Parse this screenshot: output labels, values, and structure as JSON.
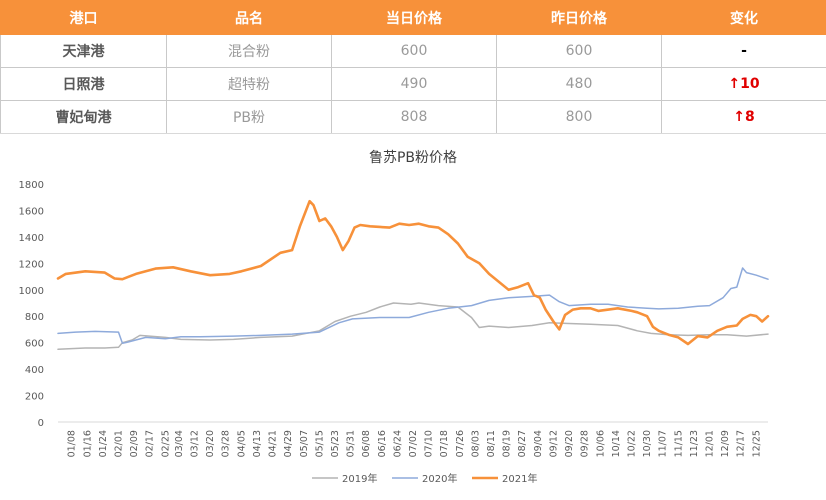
{
  "table": {
    "headers": [
      "港口",
      "品名",
      "当日价格",
      "昨日价格",
      "变化"
    ],
    "rows": [
      {
        "port": "天津港",
        "product": "混合粉",
        "today": "600",
        "yesterday": "600",
        "change": "-",
        "arrow": ""
      },
      {
        "port": "日照港",
        "product": "超特粉",
        "today": "490",
        "yesterday": "480",
        "change": "10",
        "arrow": "↑"
      },
      {
        "port": "曹妃甸港",
        "product": "PB粉",
        "today": "808",
        "yesterday": "800",
        "change": "8",
        "arrow": "↑"
      }
    ],
    "header_color": "#f7913a",
    "up_color": "#e00000"
  },
  "chart_data": {
    "type": "line",
    "title": "鲁苏PB粉价格",
    "xlabel": "",
    "ylabel": "",
    "ylim": [
      0,
      1800
    ],
    "yticks": [
      0,
      200,
      400,
      600,
      800,
      1000,
      1200,
      1400,
      1600,
      1800
    ],
    "grid": false,
    "legend": "bottom",
    "x_tick_labels": [
      "01/08",
      "01/16",
      "01/24",
      "02/01",
      "02/09",
      "02/17",
      "02/25",
      "03/04",
      "03/12",
      "03/20",
      "03/28",
      "04/05",
      "04/13",
      "04/21",
      "04/29",
      "05/07",
      "05/15",
      "05/23",
      "05/31",
      "06/08",
      "06/16",
      "06/24",
      "07/02",
      "07/10",
      "07/18",
      "07/26",
      "08/03",
      "08/11",
      "08/19",
      "08/27",
      "09/04",
      "09/12",
      "09/20",
      "09/28",
      "10/06",
      "10/14",
      "10/22",
      "10/30",
      "11/07",
      "11/15",
      "11/23",
      "12/01",
      "12/09",
      "12/17",
      "12/25"
    ],
    "x_range": [
      "01/01",
      "12/31"
    ],
    "series": [
      {
        "name": "2019年",
        "color": "#b4b4b4",
        "width": 1.5,
        "x": [
          "01/01",
          "01/15",
          "01/25",
          "02/01",
          "02/03",
          "02/08",
          "02/12",
          "02/25",
          "03/05",
          "03/20",
          "04/01",
          "04/15",
          "05/01",
          "05/15",
          "05/23",
          "05/31",
          "06/08",
          "06/15",
          "06/22",
          "07/01",
          "07/05",
          "07/15",
          "07/25",
          "08/01",
          "08/05",
          "08/10",
          "08/20",
          "09/01",
          "09/10",
          "09/20",
          "10/01",
          "10/15",
          "10/25",
          "11/01",
          "11/10",
          "11/20",
          "12/01",
          "12/10",
          "12/20",
          "12/31"
        ],
        "y": [
          550,
          560,
          560,
          565,
          600,
          620,
          655,
          640,
          625,
          620,
          625,
          640,
          650,
          690,
          760,
          800,
          830,
          870,
          900,
          890,
          900,
          880,
          870,
          790,
          715,
          725,
          715,
          730,
          750,
          745,
          740,
          730,
          690,
          670,
          660,
          655,
          660,
          660,
          650,
          665
        ]
      },
      {
        "name": "2020年",
        "color": "#8eaadb",
        "width": 1.5,
        "x": [
          "01/01",
          "01/10",
          "01/20",
          "02/01",
          "02/03",
          "02/06",
          "02/15",
          "02/25",
          "03/05",
          "03/15",
          "04/01",
          "04/15",
          "05/01",
          "05/15",
          "05/25",
          "06/01",
          "06/15",
          "06/30",
          "07/10",
          "07/20",
          "08/01",
          "08/10",
          "08/20",
          "09/01",
          "09/10",
          "09/15",
          "09/20",
          "10/01",
          "10/10",
          "10/20",
          "10/30",
          "11/05",
          "11/15",
          "11/25",
          "12/01",
          "12/08",
          "12/12",
          "12/15",
          "12/18",
          "12/20",
          "12/25",
          "12/31"
        ],
        "y": [
          670,
          680,
          685,
          680,
          595,
          605,
          640,
          630,
          645,
          645,
          650,
          655,
          665,
          680,
          750,
          780,
          790,
          790,
          830,
          860,
          880,
          920,
          940,
          950,
          960,
          910,
          880,
          890,
          890,
          870,
          860,
          855,
          860,
          875,
          880,
          940,
          1010,
          1020,
          1165,
          1130,
          1110,
          1080
        ]
      },
      {
        "name": "2021年",
        "color": "#f7913a",
        "width": 2.6,
        "x": [
          "01/01",
          "01/05",
          "01/15",
          "01/25",
          "01/30",
          "02/03",
          "02/10",
          "02/20",
          "03/01",
          "03/10",
          "03/20",
          "03/30",
          "04/05",
          "04/15",
          "04/25",
          "05/01",
          "05/05",
          "05/10",
          "05/12",
          "05/15",
          "05/18",
          "05/21",
          "05/24",
          "05/27",
          "05/30",
          "06/02",
          "06/05",
          "06/10",
          "06/20",
          "06/25",
          "06/30",
          "07/05",
          "07/10",
          "07/15",
          "07/20",
          "07/25",
          "07/30",
          "08/05",
          "08/10",
          "08/20",
          "08/25",
          "08/30",
          "09/02",
          "09/05",
          "09/08",
          "09/12",
          "09/15",
          "09/18",
          "09/22",
          "09/26",
          "10/01",
          "10/05",
          "10/15",
          "10/22",
          "10/25",
          "10/30",
          "11/02",
          "11/05",
          "11/10",
          "11/15",
          "11/20",
          "11/25",
          "11/30",
          "12/05",
          "12/10",
          "12/15",
          "12/18",
          "12/22",
          "12/25",
          "12/28",
          "12/31"
        ],
        "y": [
          1085,
          1120,
          1140,
          1130,
          1085,
          1080,
          1120,
          1160,
          1170,
          1140,
          1110,
          1120,
          1140,
          1180,
          1280,
          1300,
          1480,
          1670,
          1640,
          1520,
          1540,
          1480,
          1400,
          1300,
          1370,
          1470,
          1490,
          1480,
          1470,
          1500,
          1490,
          1500,
          1480,
          1470,
          1420,
          1350,
          1250,
          1200,
          1120,
          1000,
          1020,
          1050,
          960,
          940,
          850,
          760,
          700,
          810,
          850,
          860,
          860,
          840,
          860,
          840,
          830,
          800,
          720,
          690,
          660,
          640,
          590,
          650,
          640,
          690,
          720,
          730,
          780,
          810,
          800,
          760,
          800
        ]
      }
    ]
  }
}
